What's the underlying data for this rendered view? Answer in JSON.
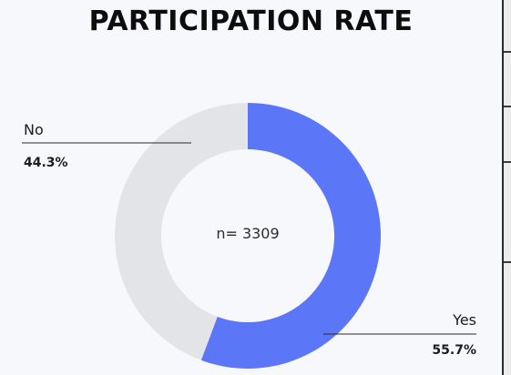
{
  "title": "PARTICIPATION RATE",
  "chart_data": {
    "type": "pie",
    "title": "PARTICIPATION RATE",
    "center_label": "n= 3309",
    "slices": [
      {
        "label": "Yes",
        "value": 55.7,
        "value_label": "55.7%",
        "color": "#5b76f7"
      },
      {
        "label": "No",
        "value": 44.3,
        "value_label": "44.3%",
        "color": "#e3e4e8"
      }
    ]
  }
}
